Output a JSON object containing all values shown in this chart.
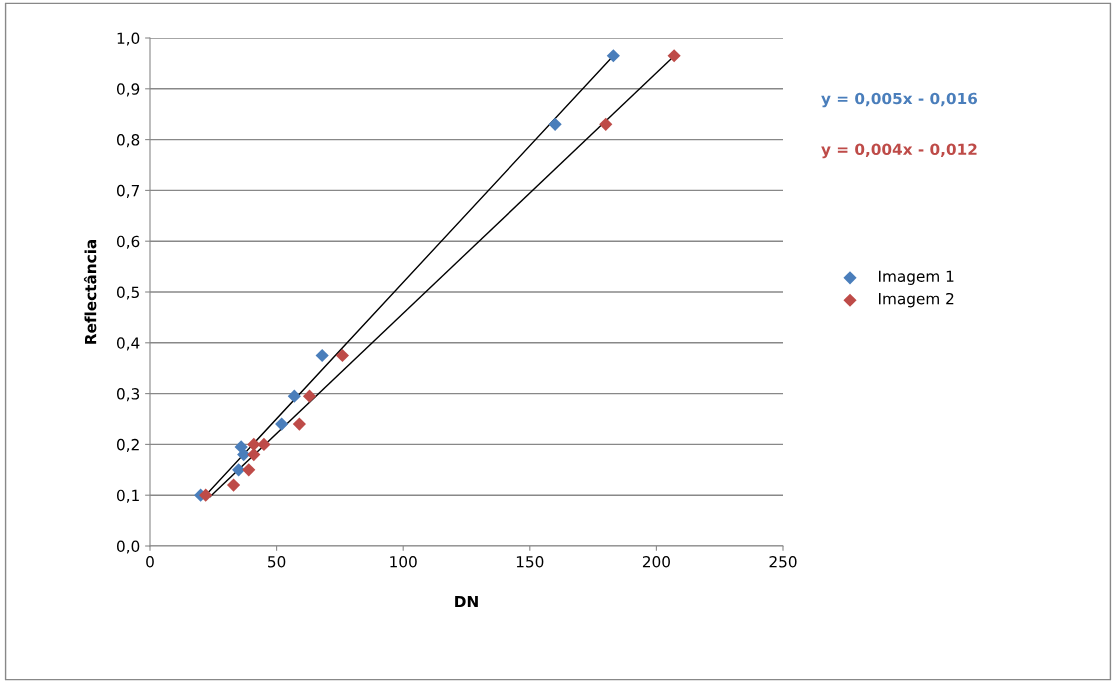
{
  "chart_data": {
    "type": "scatter",
    "xlabel": "DN",
    "ylabel": "Reflectância",
    "xlim": [
      0,
      250
    ],
    "ylim": [
      0,
      1
    ],
    "xticks": [
      0,
      50,
      100,
      150,
      200,
      250
    ],
    "yticks": [
      {
        "value": 0,
        "label": "0,0"
      },
      {
        "value": 0.1,
        "label": "0,1"
      },
      {
        "value": 0.2,
        "label": "0,2"
      },
      {
        "value": 0.3,
        "label": "0,3"
      },
      {
        "value": 0.4,
        "label": "0,4"
      },
      {
        "value": 0.5,
        "label": "0,5"
      },
      {
        "value": 0.6,
        "label": "0,6"
      },
      {
        "value": 0.7,
        "label": "0,7"
      },
      {
        "value": 0.8,
        "label": "0,8"
      },
      {
        "value": 0.9,
        "label": "0,9"
      },
      {
        "value": 1,
        "label": "1,0"
      }
    ],
    "grid": "y",
    "legend": "right",
    "marker": "diamond",
    "series": [
      {
        "name": "Imagem 1",
        "color": "#4a7ebb",
        "x": [
          20,
          32,
          35,
          37,
          36,
          52,
          57,
          68,
          160,
          183
        ],
        "values": [
          0.1,
          null,
          0.15,
          0.18,
          0.195,
          0.24,
          0.295,
          0.375,
          0.83,
          0.965
        ]
      },
      {
        "name": "Imagem 2",
        "color": "#be4b48",
        "x": [
          22,
          33,
          39,
          41,
          41,
          45,
          59,
          63,
          76,
          180,
          207
        ],
        "values": [
          0.1,
          0.12,
          0.15,
          0.18,
          0.2,
          0.2,
          0.24,
          0.295,
          0.375,
          0.83,
          0.965
        ]
      },
      {
        "type": "line",
        "marker": "none",
        "color": "#000000",
        "x": [
          22,
          183
        ],
        "values": [
          0.1,
          0.965
        ]
      },
      {
        "type": "line",
        "marker": "none",
        "color": "#000000",
        "x": [
          23.7,
          206.5
        ],
        "values": [
          0.097,
          0.962
        ]
      }
    ],
    "annotations": [
      "y = 0,005x - 0,016",
      "y = 0,004x - 0,012"
    ]
  }
}
